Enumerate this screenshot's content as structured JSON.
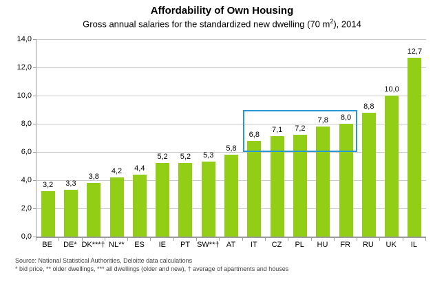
{
  "title": "Affordability of Own Housing",
  "subtitle": {
    "prefix": "Gross annual salaries for the standardized new dwelling (70 m",
    "superscript": "2",
    "suffix": "), 2014"
  },
  "chart_data": {
    "type": "bar",
    "title": "Affordability of Own Housing",
    "subtitle_full": "Gross annual salaries for the standardized new dwelling (70 m²), 2014",
    "categories": [
      "BE",
      "DE*",
      "DK***†",
      "NL**",
      "ES",
      "IE",
      "PT",
      "SW**†",
      "AT",
      "IT",
      "CZ",
      "PL",
      "HU",
      "FR",
      "RU",
      "UK",
      "IL"
    ],
    "values": [
      3.2,
      3.3,
      3.8,
      4.2,
      4.4,
      5.2,
      5.2,
      5.3,
      5.8,
      6.8,
      7.1,
      7.2,
      7.8,
      8.0,
      8.8,
      10.0,
      12.7
    ],
    "value_labels": [
      "3,2",
      "3,3",
      "3,8",
      "4,2",
      "4,4",
      "5,2",
      "5,2",
      "5,3",
      "5,8",
      "6,8",
      "7,1",
      "7,2",
      "7,8",
      "8,0",
      "8,8",
      "10,0",
      "12,7"
    ],
    "xlabel": "",
    "ylabel": "",
    "ylim": [
      0,
      14
    ],
    "y_ticks": [
      "0,0",
      "2,0",
      "4,0",
      "6,0",
      "8,0",
      "10,0",
      "12,0",
      "14,0"
    ],
    "grid": true,
    "legend": false,
    "bar_color": "#93ce17",
    "highlight_box": {
      "from_category": "IT",
      "to_category": "FR",
      "value_range": [
        6.0,
        9.0
      ],
      "color": "#2696d4"
    }
  },
  "footer": {
    "source_line": "Source: National Statistical Authorities, Deloitte data calculations",
    "notes_line": "*  bid price, ** older dwellings, *** all dwellings (older and new), † average of apartments and houses"
  }
}
